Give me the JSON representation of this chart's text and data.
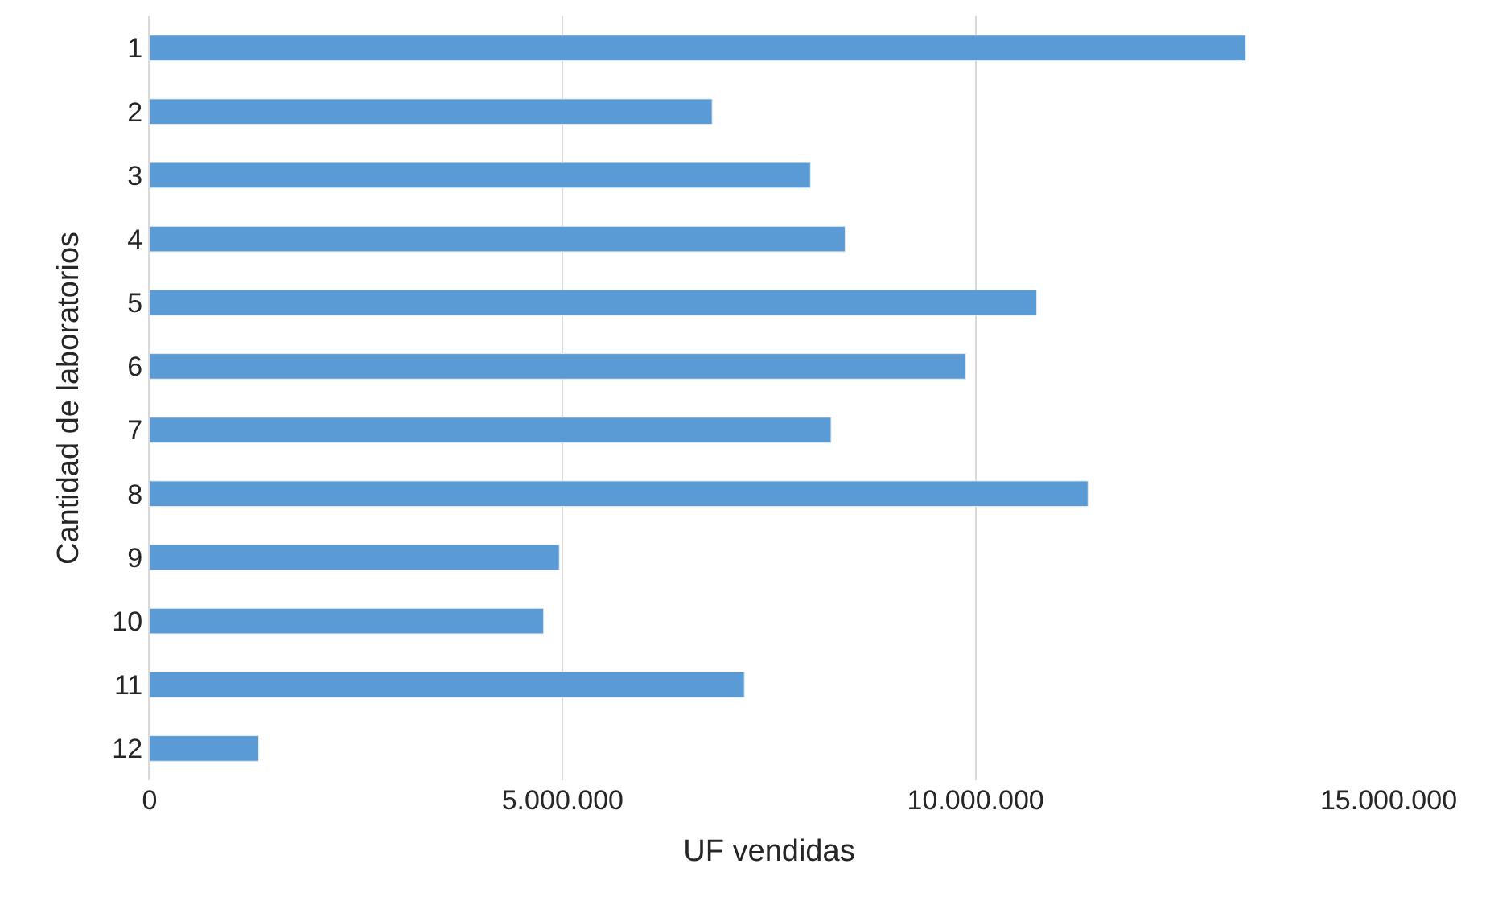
{
  "chart_data": {
    "type": "bar",
    "orientation": "horizontal",
    "xlabel": "UF vendidas",
    "ylabel": "Cantidad de laboratorios",
    "categories": [
      "1",
      "2",
      "3",
      "4",
      "5",
      "6",
      "7",
      "8",
      "9",
      "10",
      "11",
      "12"
    ],
    "values": [
      13270000,
      6810000,
      8000000,
      8420000,
      10740000,
      9880000,
      8250000,
      11360000,
      4960000,
      4770000,
      7200000,
      1320000
    ],
    "color": "#5b9bd5",
    "xlim": [
      0,
      15000000
    ],
    "xticks": [
      0,
      {
        "value": 5000000,
        "label": "5.000.000"
      },
      {
        "value": 10000000,
        "label": "10.000.000"
      },
      {
        "value": 15000000,
        "label": "15.000.000"
      }
    ],
    "grid": "x",
    "legend": false
  }
}
